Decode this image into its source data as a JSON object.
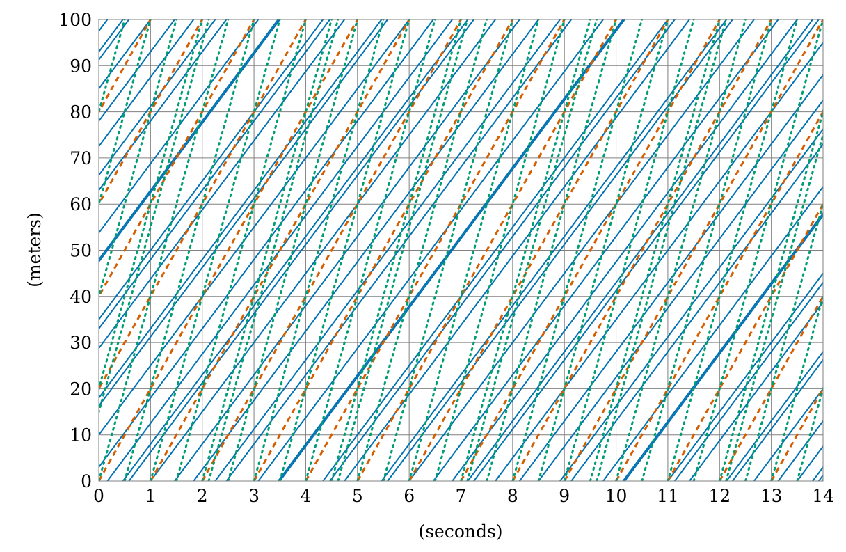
{
  "chart_data": {
    "type": "line",
    "xlabel": "(seconds)",
    "ylabel": "(meters)",
    "xlim": [
      0,
      14
    ],
    "ylim": [
      0,
      100
    ],
    "x_ticks": [
      0,
      1,
      2,
      3,
      4,
      5,
      6,
      7,
      8,
      9,
      10,
      11,
      12,
      13,
      14
    ],
    "y_ticks": [
      0,
      10,
      20,
      30,
      40,
      50,
      60,
      70,
      80,
      90,
      100
    ],
    "grid": true,
    "legend": "none",
    "series": [
      {
        "style": "solid",
        "color": "#0072B2",
        "speed": 15,
        "line_count": 19,
        "wrap": 100,
        "lines_y_at_x0": [
          93,
          78,
          63,
          48,
          33,
          18,
          3
        ],
        "lines_x_at_y0": [
          1.0,
          2.25,
          3.5,
          4.75,
          6.0,
          7.25,
          8.5,
          9.75,
          11.0,
          12.25,
          13.5
        ]
      },
      {
        "style": "dashed",
        "color": "#D55E00",
        "speed": 20,
        "wrap": 100,
        "lines_x_at_y0": [
          -4,
          -3,
          -2,
          0,
          2,
          4,
          6,
          8,
          10,
          12
        ]
      },
      {
        "style": "dotted",
        "color": "#009E73",
        "speed": 40,
        "wrap": 100,
        "lines_x_at_y0": [
          -1.5,
          -1,
          -0.375,
          1,
          2.5,
          4,
          5.5,
          7,
          8.5,
          10,
          11.5,
          13
        ]
      }
    ]
  }
}
